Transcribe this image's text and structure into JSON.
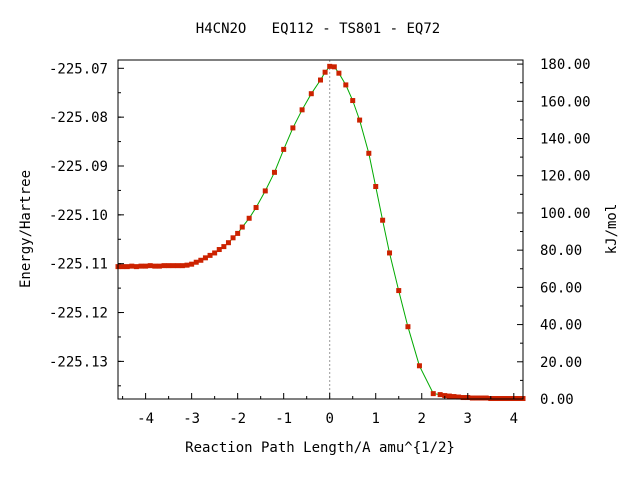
{
  "chart_data": {
    "type": "scatter",
    "title": "H4CN2O   EQ112 - TS801 - EQ72",
    "xlabel": "Reaction Path Length/A amu^{1/2}",
    "ylabel": "Energy/Hartree",
    "y2label": "kJ/mol",
    "xlim": [
      -4.6,
      4.2
    ],
    "ylim": [
      -225.1377,
      -225.0683
    ],
    "y2lim": [
      0.0,
      182.2
    ],
    "x_ticks": [
      -4,
      -3,
      -2,
      -1,
      0,
      1,
      2,
      3,
      4
    ],
    "x_tick_labels": [
      "-4",
      "-3",
      "-2",
      "-1",
      "0",
      "1",
      "2",
      "3",
      "4"
    ],
    "y_ticks": [
      -225.07,
      -225.08,
      -225.09,
      -225.1,
      -225.11,
      -225.12,
      -225.13
    ],
    "y_tick_labels": [
      "-225.07",
      "-225.08",
      "-225.09",
      "-225.10",
      "-225.11",
      "-225.12",
      "-225.13"
    ],
    "y2_ticks": [
      180,
      160,
      140,
      120,
      100,
      80,
      60,
      40,
      20,
      0
    ],
    "y2_tick_labels": [
      "180.00",
      "160.00",
      "140.00",
      "120.00",
      "100.00",
      "80.00",
      "60.00",
      "40.00",
      "20.00",
      "0.00"
    ],
    "grid": false,
    "ts_marker_x": 0,
    "colors": {
      "points": "#cc2200",
      "line": "#00aa00",
      "ts_line": "#999999",
      "frame": "#000000"
    },
    "series": [
      {
        "x": [
          -4.6,
          -4.5,
          -4.4,
          -4.3,
          -4.2,
          -4.1,
          -4.0,
          -3.9,
          -3.8,
          -3.7,
          -3.6,
          -3.5,
          -3.4,
          -3.3,
          -3.2,
          -3.1,
          -3.0,
          -2.9,
          -2.8,
          -2.7,
          -2.6,
          -2.5,
          -2.4,
          -2.3,
          -2.2,
          -2.1,
          -2.0,
          -1.9,
          -1.75,
          -1.6,
          -1.4,
          -1.2,
          -1.0,
          -0.8,
          -0.6,
          -0.4,
          -0.2,
          -0.1,
          0.0,
          0.1,
          0.2,
          0.35,
          0.5,
          0.65,
          0.85,
          1.0,
          1.15,
          1.3,
          1.5,
          1.7,
          1.95,
          2.25,
          2.4,
          2.5,
          2.6,
          2.7,
          2.8,
          2.9,
          3.0,
          3.1,
          3.2,
          3.3,
          3.4,
          3.5,
          3.6,
          3.7,
          3.8,
          3.9,
          4.0,
          4.1,
          4.2
        ],
        "y": [
          -225.1106,
          -225.1106,
          -225.1106,
          -225.1105,
          -225.1106,
          -225.1105,
          -225.1105,
          -225.1104,
          -225.1105,
          -225.1105,
          -225.1104,
          -225.1104,
          -225.1104,
          -225.1104,
          -225.1104,
          -225.1103,
          -225.1101,
          -225.1097,
          -225.1093,
          -225.1088,
          -225.1083,
          -225.1078,
          -225.1071,
          -225.1065,
          -225.1057,
          -225.1047,
          -225.1038,
          -225.1025,
          -225.1007,
          -225.0985,
          -225.0951,
          -225.0913,
          -225.0866,
          -225.0822,
          -225.0785,
          -225.0752,
          -225.0724,
          -225.0708,
          -225.0696,
          -225.0697,
          -225.071,
          -225.0734,
          -225.0766,
          -225.0806,
          -225.0874,
          -225.0942,
          -225.1011,
          -225.1078,
          -225.1155,
          -225.1229,
          -225.1309,
          -225.1366,
          -225.1368,
          -225.137,
          -225.1371,
          -225.1372,
          -225.1373,
          -225.1374,
          -225.1374,
          -225.1375,
          -225.1375,
          -225.1375,
          -225.1375,
          -225.1376,
          -225.1376,
          -225.1376,
          -225.1376,
          -225.1376,
          -225.1376,
          -225.1376,
          -225.1376
        ]
      }
    ]
  }
}
